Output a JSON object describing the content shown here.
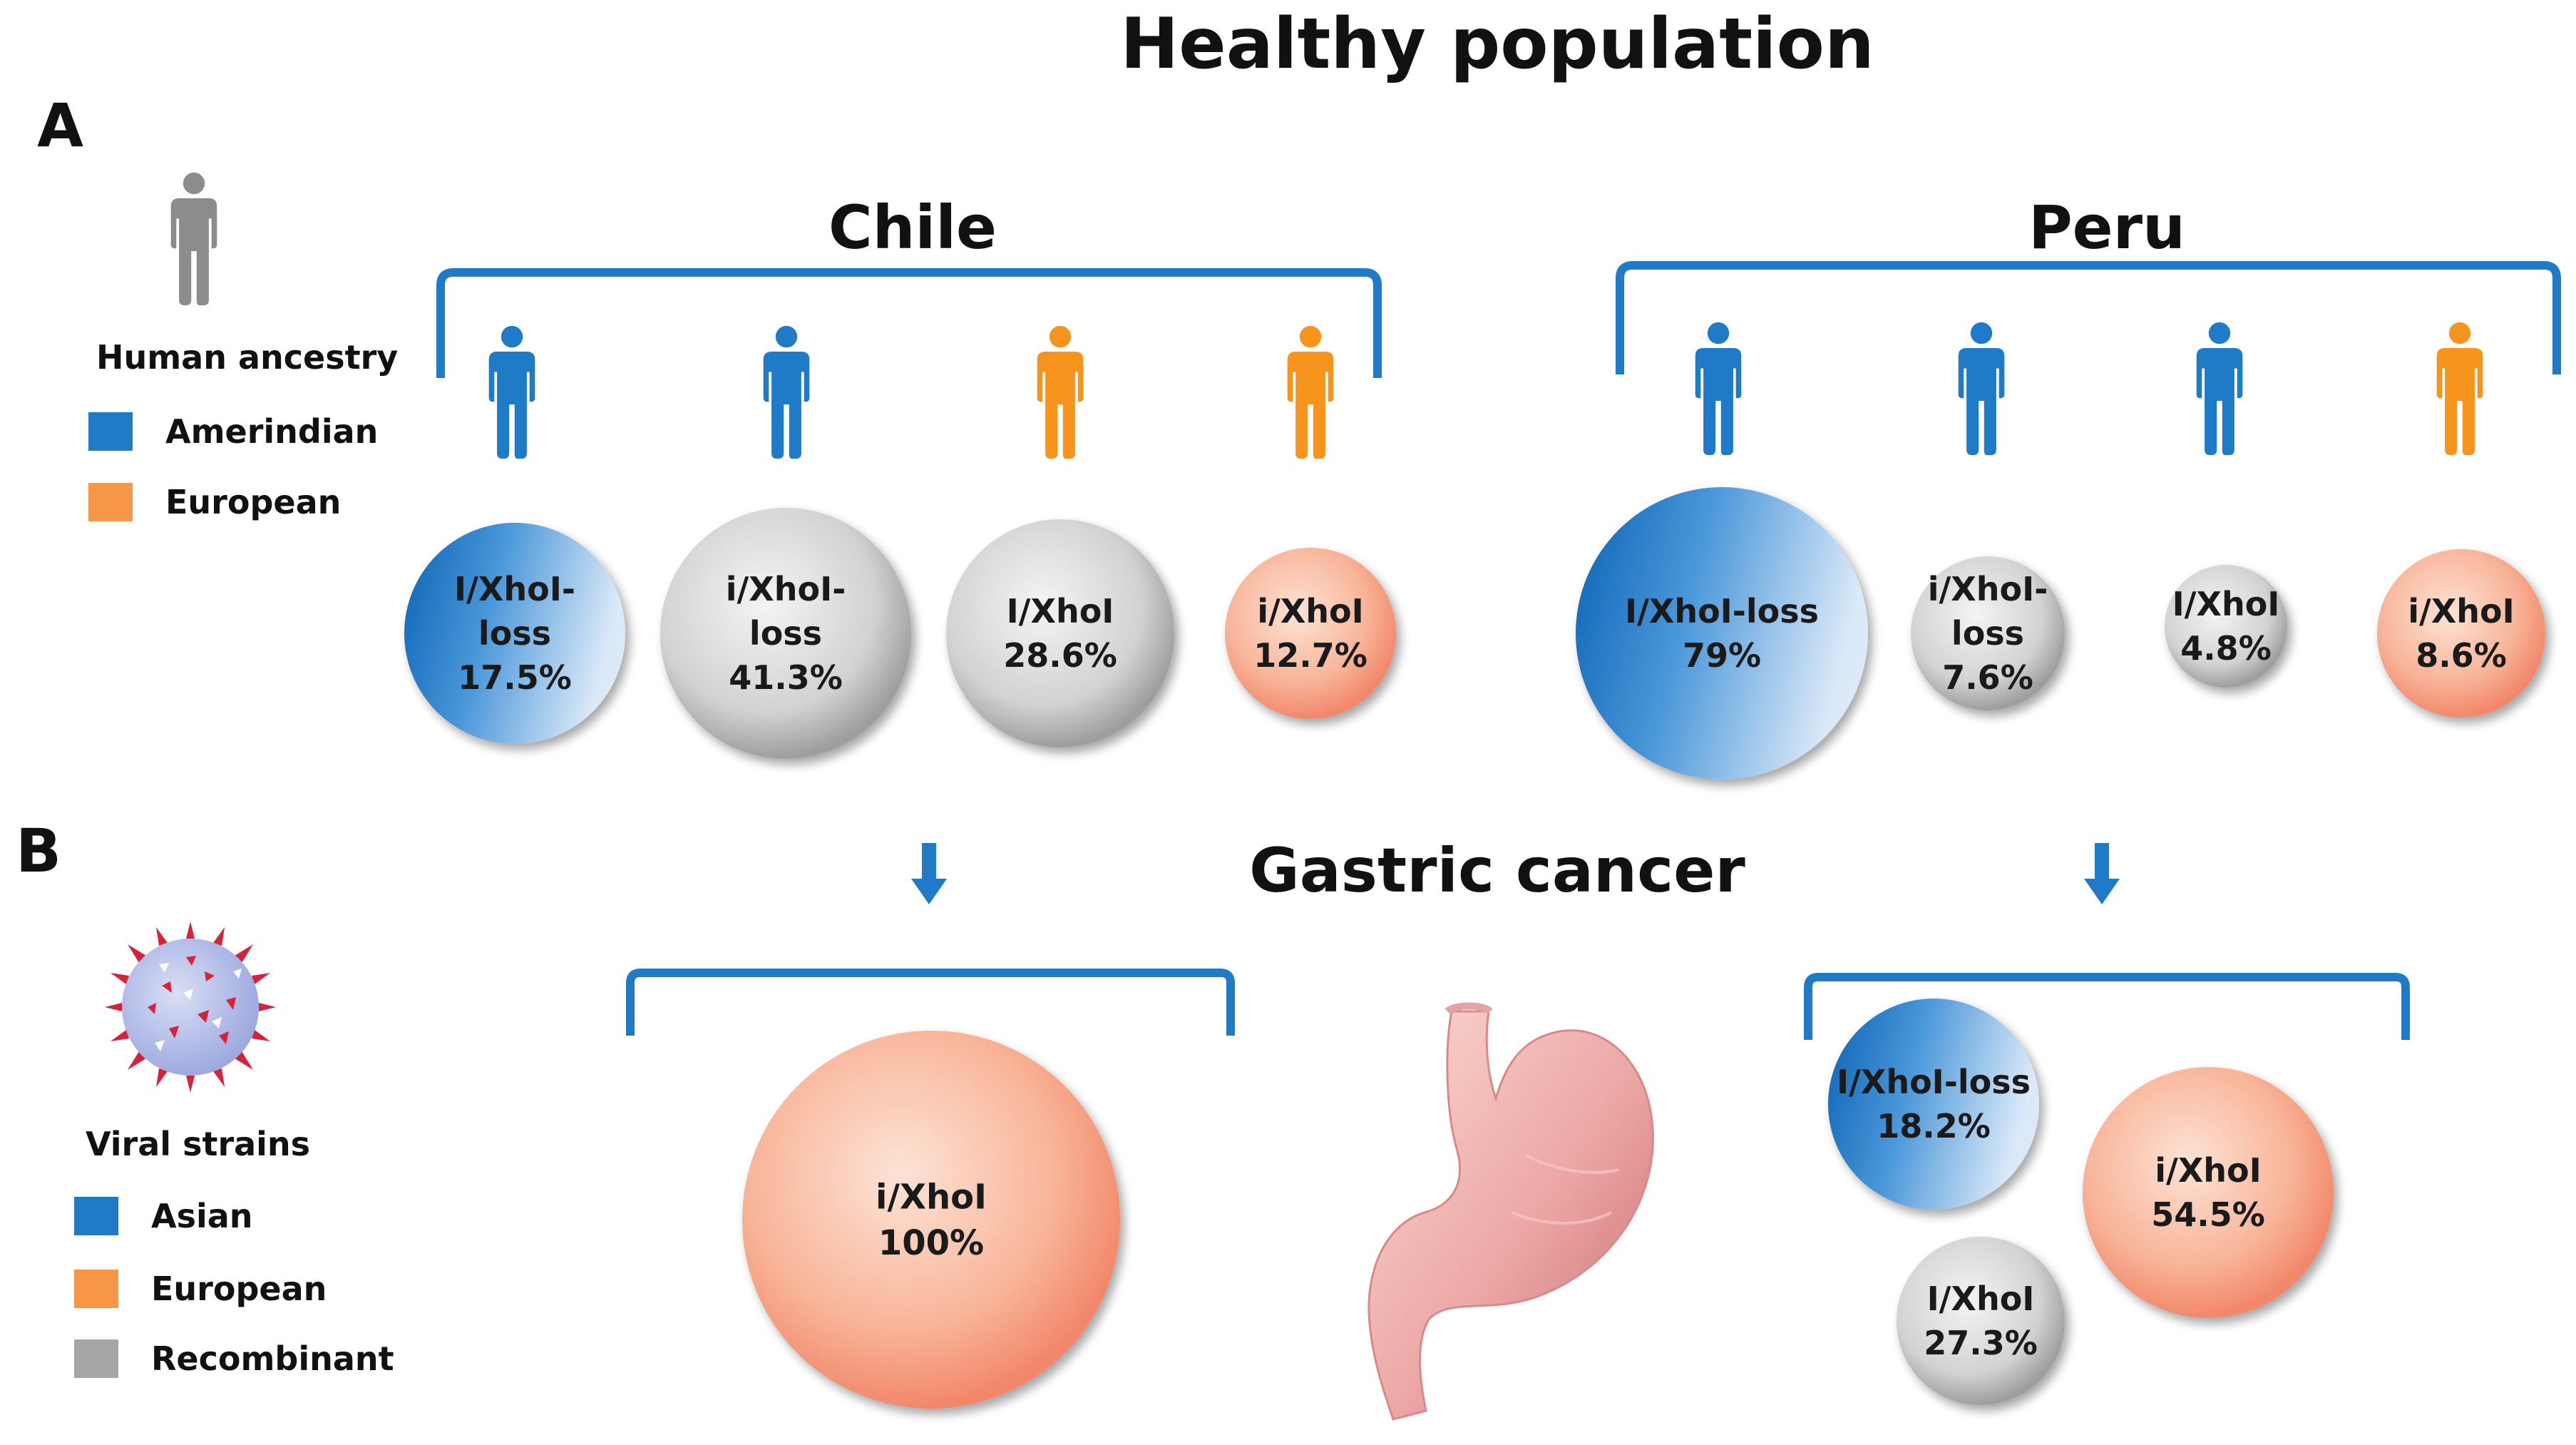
{
  "figure": {
    "title": "Healthy population",
    "subtitle": "Gastric cancer",
    "panel_a_letter": "A",
    "panel_b_letter": "B"
  },
  "legend_ancestry": {
    "title": "Human ancestry",
    "items": [
      {
        "label": "Amerindian",
        "color": "#1f7ac7"
      },
      {
        "label": "European",
        "color": "#f79646"
      }
    ]
  },
  "legend_strains": {
    "title": "Viral strains",
    "items": [
      {
        "label": "Asian",
        "color": "#1f7ac7"
      },
      {
        "label": "European",
        "color": "#f79646"
      },
      {
        "label": "Recombinant",
        "color": "#a6a6a6"
      }
    ]
  },
  "chile": {
    "label": "Chile",
    "people": [
      "amerindian",
      "amerindian",
      "european",
      "european"
    ],
    "bubbles": [
      {
        "name": "I/XhoI-loss",
        "value": 17.5,
        "lines": [
          "I/XhoI-",
          "loss",
          "17.5%"
        ],
        "strain": "asian"
      },
      {
        "name": "i/XhoI-loss",
        "value": 41.3,
        "lines": [
          "i/XhoI-",
          "loss",
          "41.3%"
        ],
        "strain": "recombinant"
      },
      {
        "name": "I/XhoI",
        "value": 28.6,
        "lines": [
          "I/XhoI",
          "28.6%"
        ],
        "strain": "recombinant"
      },
      {
        "name": "i/XhoI",
        "value": 12.7,
        "lines": [
          "i/XhoI",
          "12.7%"
        ],
        "strain": "european"
      }
    ],
    "cancer_bubbles": [
      {
        "name": "i/XhoI",
        "value": 100,
        "lines": [
          "i/XhoI",
          "100%"
        ],
        "strain": "european"
      }
    ]
  },
  "peru": {
    "label": "Peru",
    "people": [
      "amerindian",
      "amerindian",
      "amerindian",
      "european"
    ],
    "bubbles": [
      {
        "name": "I/XhoI-loss",
        "value": 79,
        "lines": [
          "I/XhoI-loss",
          "79%"
        ],
        "strain": "asian"
      },
      {
        "name": "i/XhoI-loss",
        "value": 7.6,
        "lines": [
          "i/XhoI-",
          "loss",
          "7.6%"
        ],
        "strain": "recombinant"
      },
      {
        "name": "I/XhoI",
        "value": 4.8,
        "lines": [
          "I/XhoI",
          "4.8%"
        ],
        "strain": "recombinant"
      },
      {
        "name": "i/XhoI",
        "value": 8.6,
        "lines": [
          "i/XhoI",
          "8.6%"
        ],
        "strain": "european"
      }
    ],
    "cancer_bubbles": [
      {
        "name": "I/XhoI-loss",
        "value": 18.2,
        "lines": [
          "I/XhoI-loss",
          "18.2%"
        ],
        "strain": "asian"
      },
      {
        "name": "i/XhoI",
        "value": 54.5,
        "lines": [
          "i/XhoI",
          "54.5%"
        ],
        "strain": "european"
      },
      {
        "name": "I/XhoI",
        "value": 27.3,
        "lines": [
          "I/XhoI",
          "27.3%"
        ],
        "strain": "recombinant"
      }
    ]
  }
}
